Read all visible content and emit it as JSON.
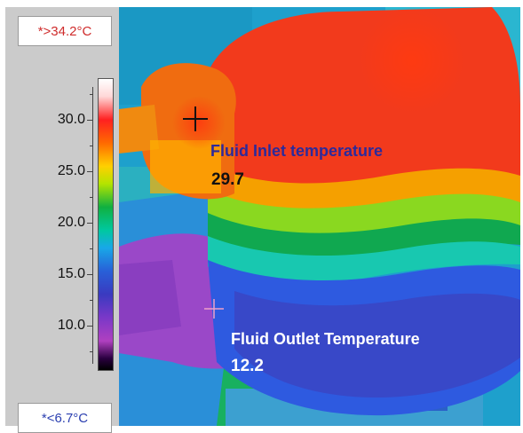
{
  "scale": {
    "max_label": "*>34.2°C",
    "min_label": "*<6.7°C",
    "ticks": [
      {
        "label": "30.0",
        "value": 30.0
      },
      {
        "label": "25.0",
        "value": 25.0
      },
      {
        "label": "20.0",
        "value": 20.0
      },
      {
        "label": "15.0",
        "value": 15.0
      },
      {
        "label": "10.0",
        "value": 10.0
      }
    ]
  },
  "annotations": {
    "inlet": {
      "label": "Fluid Inlet temperature",
      "value": "29.7"
    },
    "outlet": {
      "label": "Fluid Outlet Temperature",
      "value": "12.2"
    }
  },
  "colors": {
    "panel": "#cbcbcb",
    "max_text": "#cf2b2b",
    "min_text": "#2b3fb0",
    "inlet_label": "#2d2a9a",
    "inlet_value": "#111111",
    "outlet_label": "#ffffff"
  }
}
